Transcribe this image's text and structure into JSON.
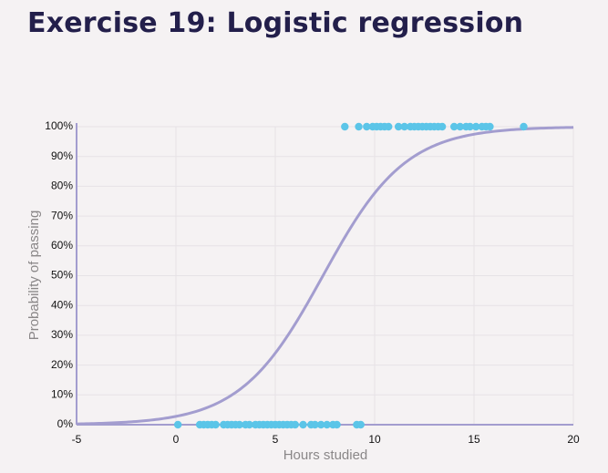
{
  "title": "Exercise 19: Logistic regression",
  "colors": {
    "background": "#f5f2f3",
    "title": "#231f4b",
    "curve": "#a39dcf",
    "points": "#5bc5e8",
    "axis": "#a39dcf",
    "grid": "#e6e2e6",
    "tick_text": "#111111",
    "axis_label": "#8a8788"
  },
  "chart_data": {
    "type": "scatter",
    "title": "Exercise 19: Logistic regression",
    "xlabel": "Hours studied",
    "ylabel": "Probability of passing",
    "xlim": [
      -5,
      20
    ],
    "ylim": [
      0,
      1
    ],
    "xticks": [
      -5,
      0,
      5,
      10,
      15,
      20
    ],
    "yticks": [
      0,
      0.1,
      0.2,
      0.3,
      0.4,
      0.5,
      0.6,
      0.7,
      0.8,
      0.9,
      1.0
    ],
    "ytick_labels": [
      "0%",
      "10%",
      "20%",
      "30%",
      "40%",
      "50%",
      "60%",
      "70%",
      "80%",
      "90%",
      "100%"
    ],
    "grid": true,
    "series": [
      {
        "type": "scatter",
        "x": [
          0.1,
          1.2,
          1.4,
          1.6,
          1.8,
          2.0,
          2.4,
          2.6,
          2.8,
          3.0,
          3.2,
          3.5,
          3.7,
          4.0,
          4.2,
          4.4,
          4.6,
          4.8,
          5.0,
          5.2,
          5.4,
          5.6,
          5.8,
          6.0,
          6.4,
          6.8,
          7.0,
          7.3,
          7.6,
          7.9,
          8.1,
          9.1,
          9.3
        ],
        "y": [
          0,
          0,
          0,
          0,
          0,
          0,
          0,
          0,
          0,
          0,
          0,
          0,
          0,
          0,
          0,
          0,
          0,
          0,
          0,
          0,
          0,
          0,
          0,
          0,
          0,
          0,
          0,
          0,
          0,
          0,
          0,
          0,
          0
        ]
      },
      {
        "type": "scatter",
        "x": [
          8.5,
          9.2,
          9.6,
          9.9,
          10.1,
          10.3,
          10.5,
          10.7,
          11.2,
          11.5,
          11.8,
          12.0,
          12.2,
          12.4,
          12.6,
          12.8,
          13.0,
          13.2,
          13.4,
          14.0,
          14.3,
          14.6,
          14.8,
          15.1,
          15.4,
          15.6,
          15.8,
          17.5
        ],
        "y": [
          1,
          1,
          1,
          1,
          1,
          1,
          1,
          1,
          1,
          1,
          1,
          1,
          1,
          1,
          1,
          1,
          1,
          1,
          1,
          1,
          1,
          1,
          1,
          1,
          1,
          1,
          1,
          1
        ]
      },
      {
        "type": "line",
        "function": "logistic",
        "midpoint": 7.4,
        "slope": 0.48,
        "x_range": [
          -5,
          20
        ]
      }
    ]
  }
}
